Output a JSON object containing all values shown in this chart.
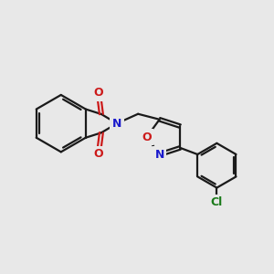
{
  "background_color": "#e8e8e8",
  "bond_color": "#1a1a1a",
  "N_color": "#1a1acc",
  "O_color": "#cc1a1a",
  "Cl_color": "#1a7a1a",
  "bond_width": 1.6,
  "figsize": [
    3.0,
    3.0
  ],
  "dpi": 100,
  "xlim": [
    0,
    10
  ],
  "ylim": [
    0,
    10
  ]
}
